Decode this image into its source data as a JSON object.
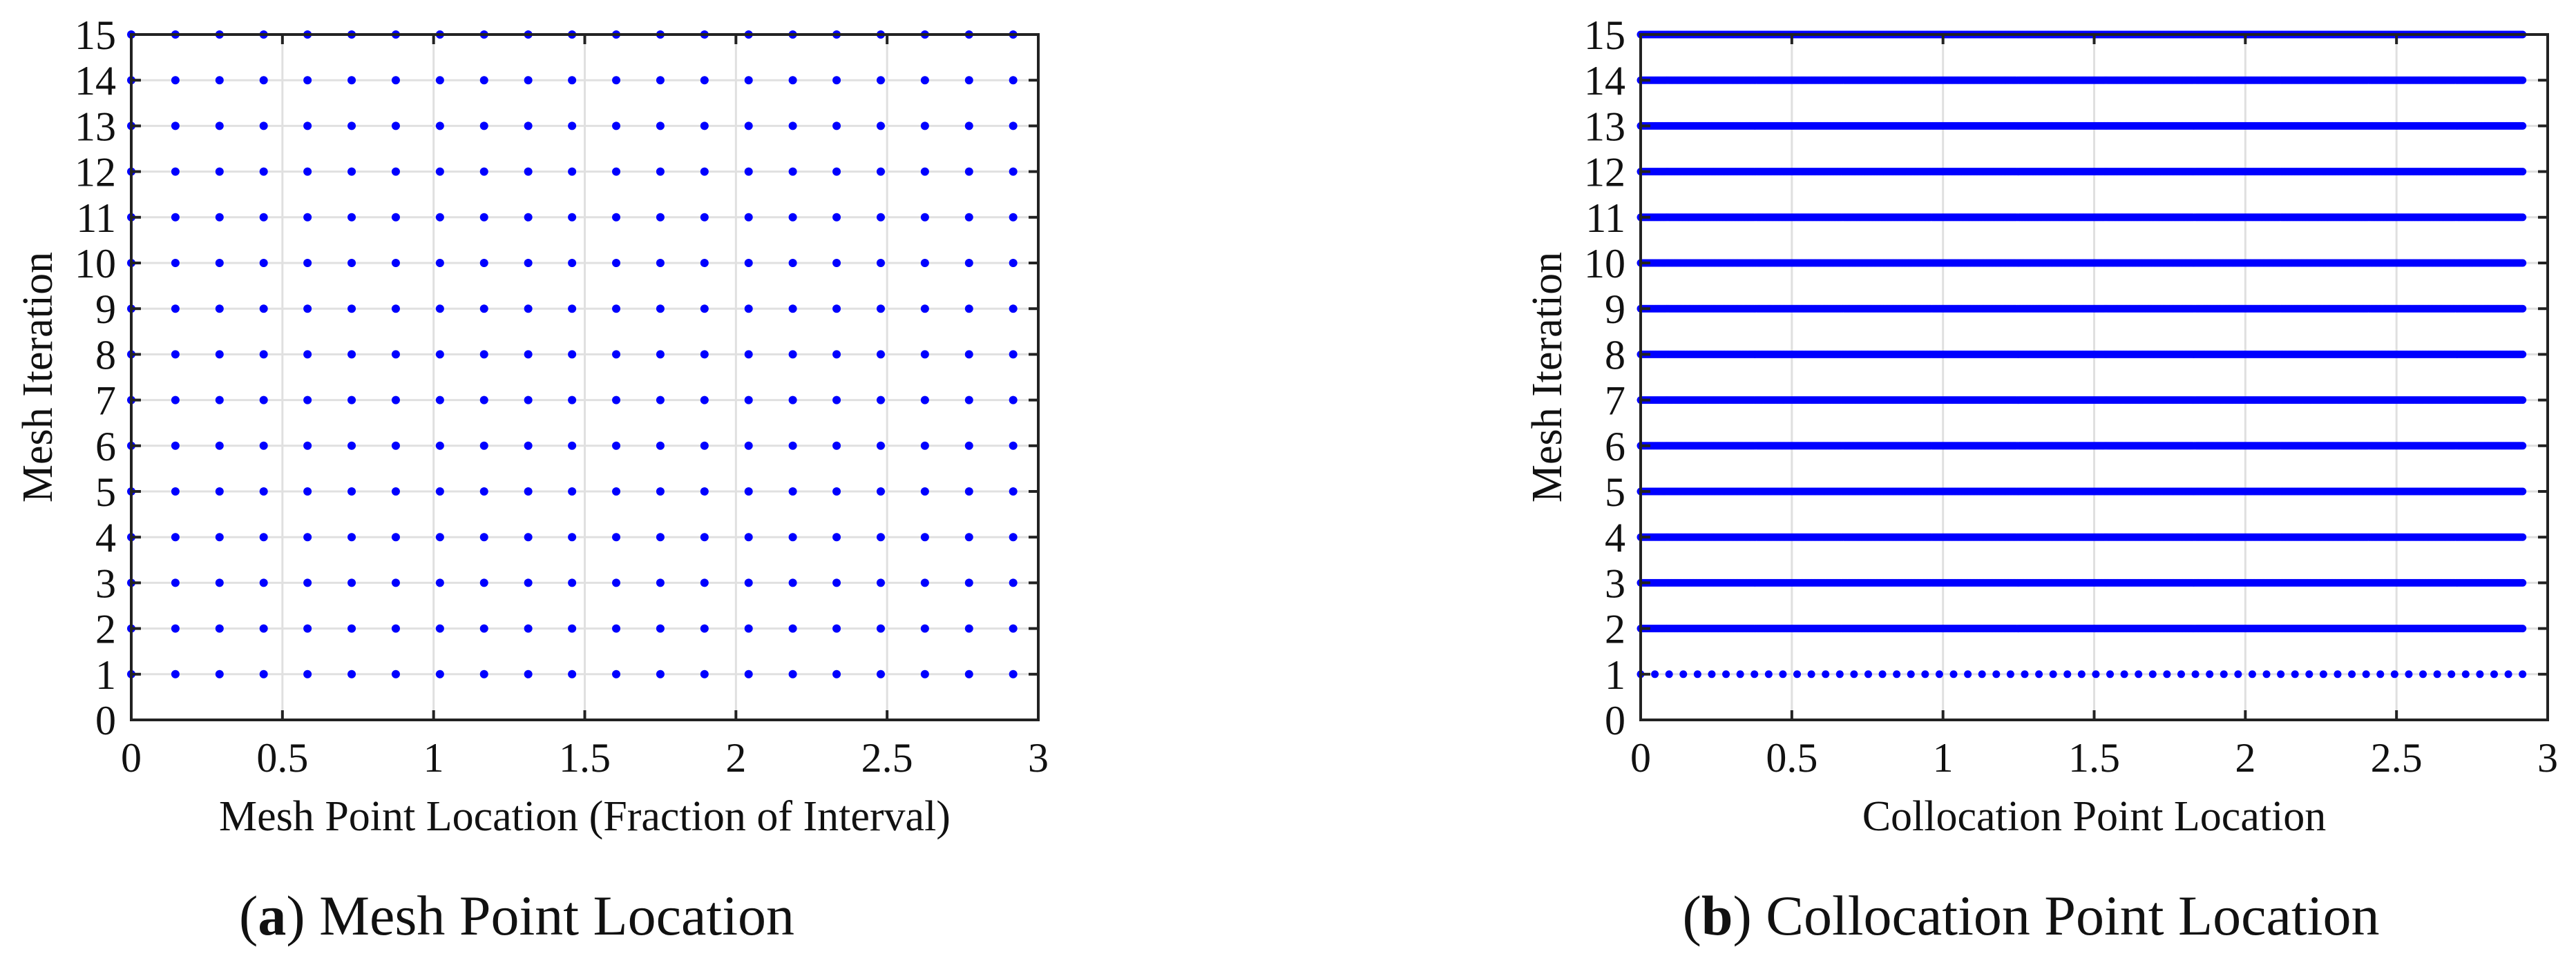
{
  "chart_data": [
    {
      "type": "scatter",
      "panel": "a",
      "xlabel": "Mesh Point Location (Fraction of Interval)",
      "ylabel": "Mesh Iteration",
      "xlim": [
        0,
        3
      ],
      "ylim": [
        0,
        15
      ],
      "xticks": [
        "0",
        "0.5",
        "1",
        "1.5",
        "2",
        "2.5",
        "3"
      ],
      "yticks": [
        "0",
        "1",
        "2",
        "3",
        "4",
        "5",
        "6",
        "7",
        "8",
        "9",
        "10",
        "11",
        "12",
        "13",
        "14",
        "15"
      ],
      "grid": true,
      "marker_color": "#0000ff",
      "series": [
        {
          "points_per_iteration": {
            "x_values": [
              0,
              0.146,
              0.292,
              0.438,
              0.583,
              0.729,
              0.875,
              1.021,
              1.167,
              1.313,
              1.458,
              1.604,
              1.75,
              1.896,
              2.042,
              2.188,
              2.333,
              2.479,
              2.625,
              2.771,
              2.917
            ],
            "iterations": [
              1,
              2,
              3,
              4,
              5,
              6,
              7,
              8,
              9,
              10,
              11,
              12,
              13,
              14,
              15
            ]
          }
        }
      ]
    },
    {
      "type": "scatter",
      "panel": "b",
      "xlabel": "Collocation Point Location",
      "ylabel": "Mesh Iteration",
      "xlim": [
        0,
        3
      ],
      "ylim": [
        0,
        15
      ],
      "xticks": [
        "0",
        "0.5",
        "1",
        "1.5",
        "2",
        "2.5",
        "3"
      ],
      "yticks": [
        "0",
        "1",
        "2",
        "3",
        "4",
        "5",
        "6",
        "7",
        "8",
        "9",
        "10",
        "11",
        "12",
        "13",
        "14",
        "15"
      ],
      "grid": true,
      "marker_color": "#0000ff",
      "series": [
        {
          "iteration": 1,
          "x_range": [
            0,
            2.917
          ],
          "points": 63
        },
        {
          "iteration": 2,
          "x_range": [
            0,
            2.917
          ],
          "points": 600
        },
        {
          "iteration": 3,
          "x_range": [
            0,
            2.917
          ],
          "points": 600
        },
        {
          "iteration": 4,
          "x_range": [
            0,
            2.917
          ],
          "points": 600
        },
        {
          "iteration": 5,
          "x_range": [
            0,
            2.917
          ],
          "points": 600
        },
        {
          "iteration": 6,
          "x_range": [
            0,
            2.917
          ],
          "points": 600
        },
        {
          "iteration": 7,
          "x_range": [
            0,
            2.917
          ],
          "points": 600
        },
        {
          "iteration": 8,
          "x_range": [
            0,
            2.917
          ],
          "points": 600
        },
        {
          "iteration": 9,
          "x_range": [
            0,
            2.917
          ],
          "points": 600
        },
        {
          "iteration": 10,
          "x_range": [
            0,
            2.917
          ],
          "points": 600
        },
        {
          "iteration": 11,
          "x_range": [
            0,
            2.917
          ],
          "points": 600
        },
        {
          "iteration": 12,
          "x_range": [
            0,
            2.917
          ],
          "points": 600
        },
        {
          "iteration": 13,
          "x_range": [
            0,
            2.917
          ],
          "points": 600
        },
        {
          "iteration": 14,
          "x_range": [
            0,
            2.917
          ],
          "points": 600
        },
        {
          "iteration": 15,
          "x_range": [
            0,
            2.917
          ],
          "points": 600
        }
      ]
    }
  ],
  "captions": {
    "a": {
      "letter": "a",
      "text": "Mesh Point Location"
    },
    "b": {
      "letter": "b",
      "text": "Collocation Point Location"
    }
  }
}
